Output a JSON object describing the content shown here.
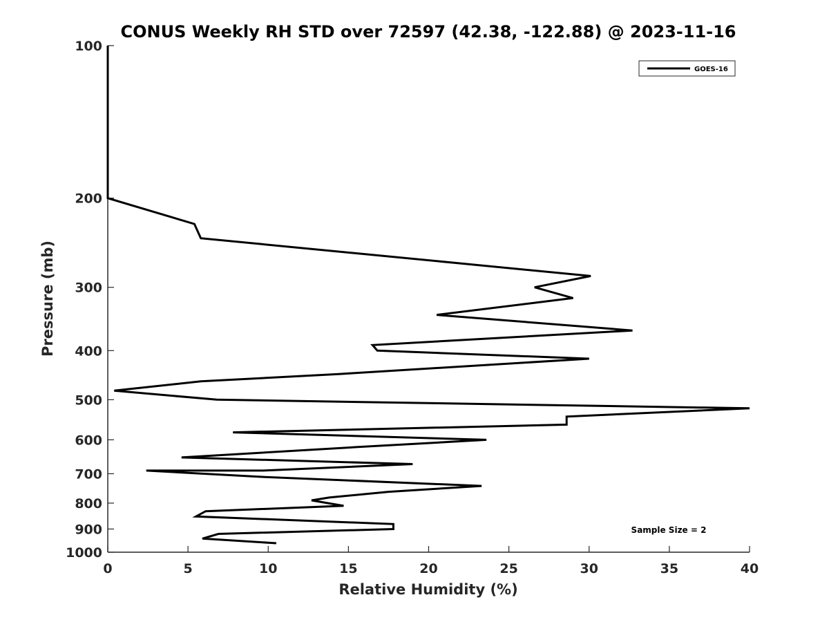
{
  "chart_data": {
    "type": "line",
    "title": "CONUS Weekly RH STD over 72597 (42.38, -122.88) @ 2023-11-16",
    "xlabel": "Relative Humidity (%)",
    "ylabel": "Pressure (mb)",
    "xlim": [
      0,
      40
    ],
    "ylim": [
      100,
      1000
    ],
    "y_scale": "log",
    "y_reversed": true,
    "grid": false,
    "legend_position": "top-right",
    "x_ticks": [
      "0",
      "5",
      "10",
      "15",
      "20",
      "25",
      "30",
      "35",
      "40"
    ],
    "y_ticks": [
      "100",
      "200",
      "300",
      "400",
      "500",
      "600",
      "700",
      "800",
      "900",
      "1000"
    ],
    "annotation": "Sample Size = 2",
    "series": [
      {
        "name": "GOES-16",
        "color": "#000000",
        "x": [
          0.0,
          0.0,
          0.0,
          5.4,
          5.8,
          30.1,
          26.6,
          29.0,
          20.5,
          32.7,
          16.5,
          16.8,
          30.0,
          14.4,
          5.8,
          0.4,
          6.8,
          40.0,
          28.6,
          28.6,
          7.8,
          23.6,
          15.6,
          4.6,
          19.0,
          9.7,
          2.4,
          9.6,
          23.3,
          17.5,
          13.8,
          12.7,
          14.7,
          6.1,
          5.5,
          17.8,
          17.8,
          6.9,
          5.9,
          10.5
        ],
        "y": [
          100,
          150,
          200,
          225,
          240,
          285,
          300,
          315,
          340,
          365,
          390,
          400,
          415,
          445,
          460,
          480,
          500,
          520,
          540,
          560,
          580,
          600,
          620,
          650,
          670,
          690,
          690,
          710,
          740,
          760,
          780,
          790,
          810,
          830,
          850,
          880,
          900,
          920,
          940,
          960
        ]
      }
    ]
  }
}
